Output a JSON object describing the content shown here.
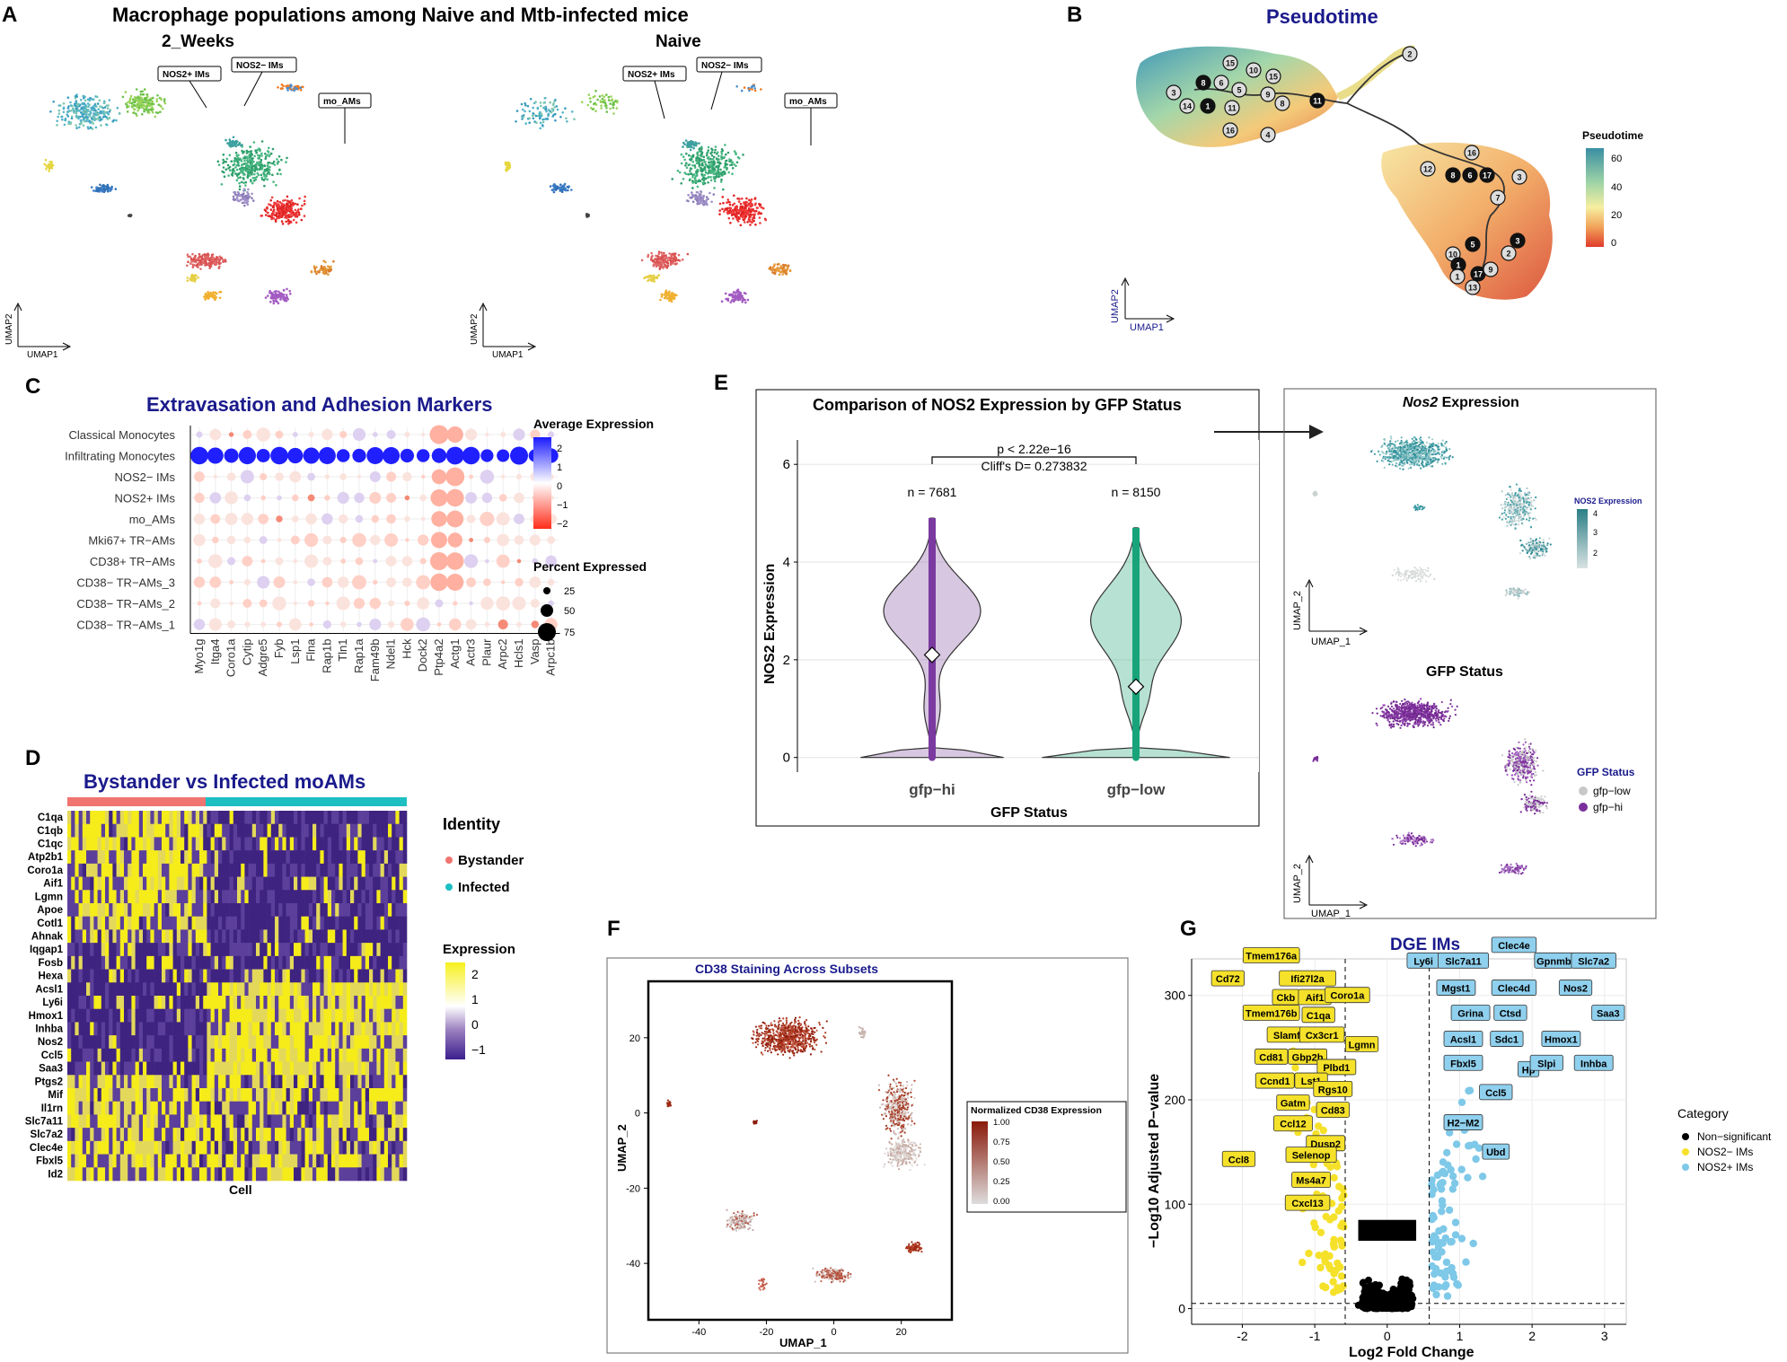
{
  "panels": {
    "a": "A",
    "b": "B",
    "c": "C",
    "d": "D",
    "e": "E",
    "f": "F",
    "g": "G"
  },
  "panel_a": {
    "title": "Macrophage populations among Naive and Mtb-infected mice",
    "left": {
      "subtitle": "2_Weeks",
      "tags": [
        "NOS2+ IMs",
        "NOS2− IMs",
        "mo_AMs"
      ]
    },
    "right": {
      "subtitle": "Naive",
      "tags": [
        "NOS2+ IMs",
        "NOS2− IMs",
        "mo_AMs"
      ]
    },
    "axis_x": "UMAP1",
    "axis_y": "UMAP2"
  },
  "panel_b": {
    "title": "Pseudotime",
    "legend_title": "Pseudotime",
    "legend_ticks": [
      "60",
      "40",
      "20",
      "0"
    ],
    "axis_x": "UMAP1",
    "axis_y": "UMAP2",
    "nodes": [
      "2",
      "15",
      "10",
      "15",
      "8",
      "6",
      "3",
      "5",
      "1",
      "8",
      "9",
      "14",
      "11",
      "16",
      "4",
      "11",
      "12",
      "16",
      "17",
      "8",
      "6",
      "3",
      "7",
      "3",
      "5",
      "10",
      "1",
      "2",
      "1",
      "17",
      "9",
      "13"
    ]
  },
  "panel_c": {
    "title": "Extravasation and Adhesion Markers",
    "rows": [
      "Classical Monocytes",
      "Infiltrating Monocytes",
      "NOS2− IMs",
      "NOS2+ IMs",
      "mo_AMs",
      "Mki67+ TR−AMs",
      "CD38+ TR−AMs",
      "CD38− TR−AMs_3",
      "CD38− TR−AMs_2",
      "CD38− TR−AMs_1"
    ],
    "genes": [
      "Myo1g",
      "Itga4",
      "Coro1a",
      "Cytip",
      "Adgre5",
      "Fyb",
      "Lsp1",
      "Flna",
      "Rap1b",
      "Tln1",
      "Rap1a",
      "Fam49b",
      "Ndel1",
      "Hck",
      "Dock2",
      "Ptp4a2",
      "Actg1",
      "Actr3",
      "Plaur",
      "Arpc2",
      "Hcls1",
      "Vasp",
      "Arpc1b"
    ],
    "legend_expr_title": "Average Expression",
    "legend_expr_ticks": [
      "2",
      "1",
      "0",
      "−1",
      "−2"
    ],
    "legend_pct_title": "Percent Expressed",
    "legend_pct_ticks": [
      "25",
      "50",
      "75"
    ]
  },
  "panel_d": {
    "title": "Bystander vs Infected moAMs",
    "genes": [
      "C1qa",
      "C1qb",
      "C1qc",
      "Atp2b1",
      "Coro1a",
      "Aif1",
      "Lgmn",
      "Apoe",
      "Cotl1",
      "Ahnak",
      "Iqgap1",
      "Fosb",
      "Hexa",
      "Acsl1",
      "Ly6i",
      "Hmox1",
      "Inhba",
      "Nos2",
      "Ccl5",
      "Saa3",
      "Ptgs2",
      "Mif",
      "Il1rn",
      "Slc7a11",
      "Slc7a2",
      "Clec4e",
      "Fbxl5",
      "Id2"
    ],
    "xlabel": "Cell",
    "identity_title": "Identity",
    "identities": [
      "Bystander",
      "Infected"
    ],
    "identity_colors": [
      "#f07470",
      "#1dbfc3"
    ],
    "expr_title": "Expression",
    "expr_ticks": [
      "2",
      "1",
      "0",
      "−1"
    ]
  },
  "panel_e": {
    "title": "Comparison of NOS2 Expression by GFP Status",
    "pval": "p < 2.22e−16",
    "cliff": "Cliff's D= 0.273832",
    "n_labels": [
      "n = 7681",
      "n = 8150"
    ],
    "xlabel": "GFP Status",
    "ylabel": "NOS2 Expression",
    "right_top_title_italic": "Nos2",
    "right_top_title_rest": " Expression",
    "right_top_legend_title": "NOS2 Expression",
    "right_top_legend_ticks": [
      "4",
      "3",
      "2"
    ],
    "right_bottom_title": "GFP Status",
    "right_bottom_legend_title": "GFP Status",
    "right_bottom_legend": [
      "gfp−low",
      "gfp−hi"
    ],
    "umap_x": "UMAP_1",
    "umap_y": "UMAP_2"
  },
  "panel_f": {
    "title": "CD38 Staining Across Subsets",
    "legend_title": "Normalized CD38 Expression",
    "legend_ticks": [
      "1.00",
      "0.75",
      "0.50",
      "0.25",
      "0.00"
    ],
    "xlabel": "UMAP_1",
    "ylabel": "UMAP_2"
  },
  "panel_g": {
    "title": "DGE IMs",
    "xlabel": "Log2 Fold Change",
    "ylabel": "−Log10 Adjusted P−value",
    "legend_title": "Category",
    "legend": [
      "Non−significant",
      "NOS2− IMs",
      "NOS2+ IMs"
    ],
    "legend_colors": [
      "#000000",
      "#f5e12a",
      "#7ec8e8"
    ],
    "yellow_genes": [
      "Tmem176a",
      "Cd72",
      "Ifi27l2a",
      "Ckb",
      "Aif1",
      "Coro1a",
      "Tmem176b",
      "C1qa",
      "Slamf9",
      "Cx3cr1",
      "Lgmn",
      "Cd81",
      "Gbp2b",
      "Plbd1",
      "Ccnd1",
      "Lst1",
      "Rgs10",
      "Gatm",
      "Cd83",
      "Ccl12",
      "Dusp2",
      "Ccl8",
      "Selenop",
      "Ms4a7",
      "Cxcl13"
    ],
    "blue_genes": [
      "Clec4e",
      "Ly6i",
      "Slc7a11",
      "Gpnmb",
      "Slc7a2",
      "Mgst1",
      "Clec4d",
      "Nos2",
      "Grina",
      "Ctsd",
      "Saa3",
      "Acsl1",
      "Sdc1",
      "Hmox1",
      "Fbxl5",
      "Hp",
      "Slpi",
      "Inhba",
      "Ccl5",
      "H2−M2",
      "Ubd"
    ]
  },
  "chart_data": [
    {
      "type": "violin",
      "title": "Comparison of NOS2 Expression by GFP Status",
      "categories": [
        "gfp−hi",
        "gfp−low"
      ],
      "n": [
        7681,
        8150
      ],
      "medians": [
        2.1,
        1.45
      ],
      "ylim": [
        0,
        6.5
      ],
      "yticks": [
        0,
        2,
        4,
        6
      ],
      "colors": [
        "#a982bd",
        "#5fbf9e"
      ],
      "xlabel": "GFP Status",
      "ylabel": "NOS2 Expression"
    },
    {
      "type": "scatter",
      "title": "DGE IMs",
      "xlabel": "Log2 Fold Change",
      "ylabel": "−Log10 Adjusted P−value",
      "xlim": [
        -2.7,
        3.3
      ],
      "ylim": [
        -15,
        335
      ],
      "xticks": [
        -2,
        -1,
        0,
        1,
        2,
        3
      ],
      "yticks": [
        0,
        100,
        200,
        300
      ],
      "thresholds": {
        "x": [
          -0.58,
          0.58
        ],
        "y": 5
      }
    },
    {
      "type": "scatter",
      "title": "CD38 Staining Across Subsets",
      "xlim": [
        -55,
        35
      ],
      "ylim": [
        -55,
        35
      ],
      "xticks": [
        -40,
        -20,
        0,
        20
      ],
      "yticks": [
        20,
        0,
        -20,
        -40
      ]
    }
  ]
}
